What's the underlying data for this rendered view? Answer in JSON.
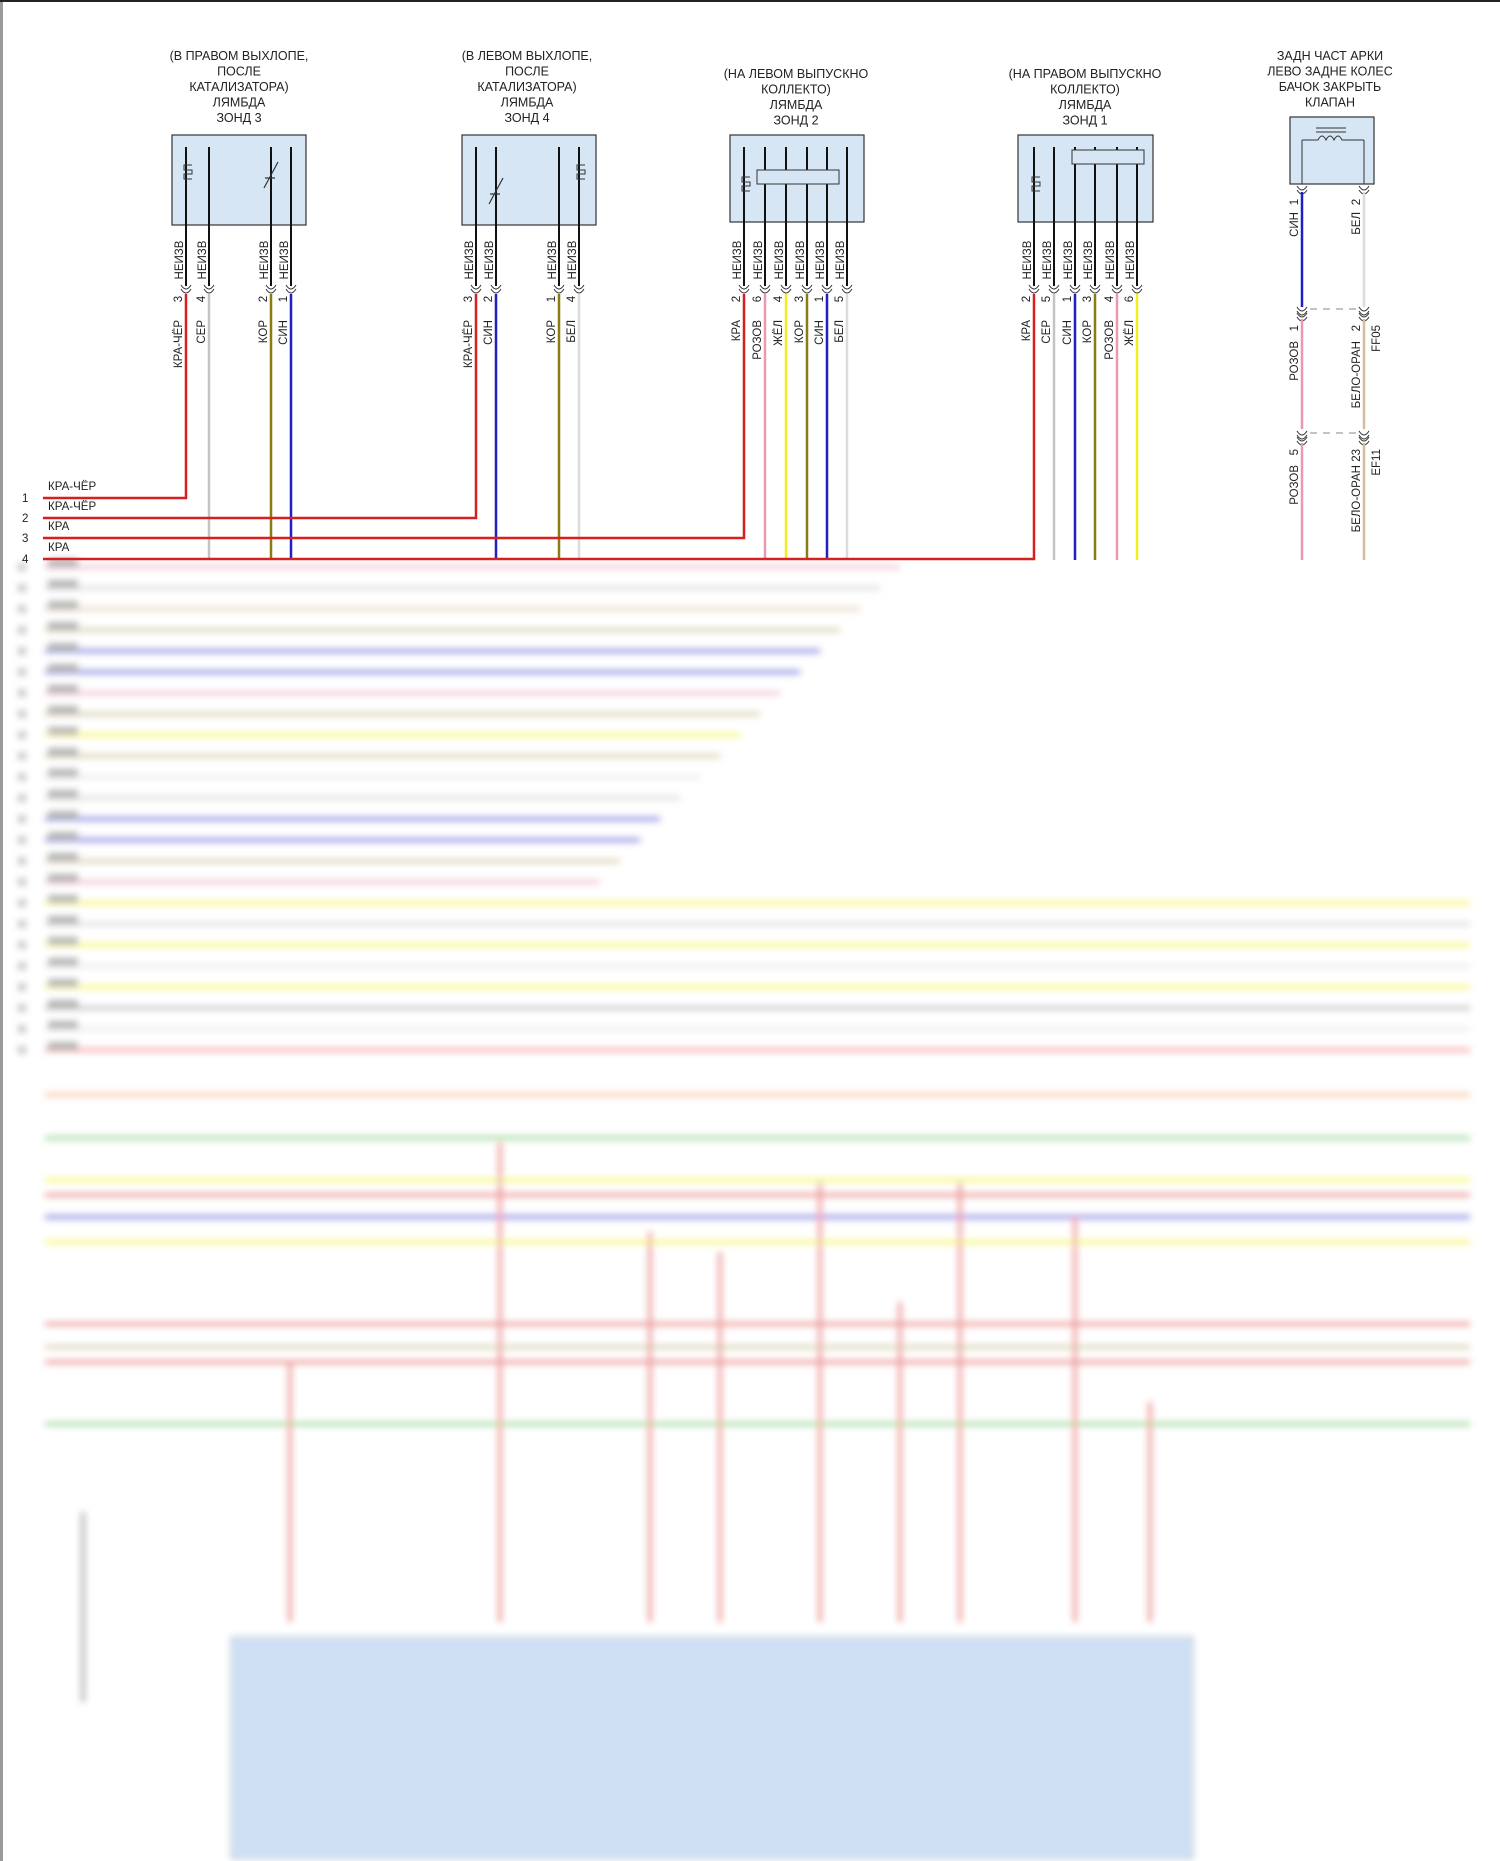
{
  "bus": [
    {
      "num": "1",
      "label": "КРА-ЧЁР"
    },
    {
      "num": "2",
      "label": "КРА-ЧЁР"
    },
    {
      "num": "3",
      "label": "КРА"
    },
    {
      "num": "4",
      "label": "КРА"
    }
  ],
  "unknown_label": "НЕИЗВ",
  "connectors": [
    {
      "id": "zond3",
      "title": [
        "(В ПРАВОМ ВЫХЛОПЕ,",
        "ПОСЛЕ",
        "КАТАЛИЗАТОРА)",
        "ЛЯМБДА",
        "ЗОНД 3"
      ],
      "pins": [
        {
          "num": "3",
          "wire": "КРА-ЧЁР"
        },
        {
          "num": "4",
          "wire": "СЕР"
        },
        {
          "num": "2",
          "wire": "КОР"
        },
        {
          "num": "1",
          "wire": "СИН"
        }
      ]
    },
    {
      "id": "zond4",
      "title": [
        "(В ЛЕВОМ ВЫХЛОПЕ,",
        "ПОСЛЕ",
        "КАТАЛИЗАТОРА)",
        "ЛЯМБДА",
        "ЗОНД 4"
      ],
      "pins": [
        {
          "num": "3",
          "wire": "КРА-ЧЁР"
        },
        {
          "num": "2",
          "wire": "СИН"
        },
        {
          "num": "1",
          "wire": "КОР"
        },
        {
          "num": "4",
          "wire": "БЕЛ"
        }
      ]
    },
    {
      "id": "zond2",
      "title": [
        "(НА ЛЕВОМ ВЫПУСКНО",
        "КОЛЛЕКТО)",
        "ЛЯМБДА",
        "ЗОНД 2"
      ],
      "pins": [
        {
          "num": "2",
          "wire": "КРА"
        },
        {
          "num": "6",
          "wire": "РОЗОВ"
        },
        {
          "num": "4",
          "wire": "ЖЁЛ"
        },
        {
          "num": "3",
          "wire": "КОР"
        },
        {
          "num": "1",
          "wire": "СИН"
        },
        {
          "num": "5",
          "wire": "БЕЛ"
        }
      ]
    },
    {
      "id": "zond1",
      "title": [
        "(НА ПРАВОМ ВЫПУСКНО",
        "КОЛЛЕКТО)",
        "ЛЯМБДА",
        "ЗОНД 1"
      ],
      "pins": [
        {
          "num": "2",
          "wire": "КРА"
        },
        {
          "num": "5",
          "wire": "СЕР"
        },
        {
          "num": "1",
          "wire": "СИН"
        },
        {
          "num": "3",
          "wire": "КОР"
        },
        {
          "num": "4",
          "wire": "РОЗОВ"
        },
        {
          "num": "6",
          "wire": "ЖЁЛ"
        }
      ]
    },
    {
      "id": "valve",
      "title": [
        "ЗАДН ЧАСТ АРКИ",
        "ЛЕВО ЗАДНЕ КОЛЕС",
        "БАЧОК ЗАКРЫТЬ",
        "КЛАПАН"
      ],
      "pins": [
        {
          "num": "1",
          "wire": "СИН"
        },
        {
          "num": "2",
          "wire": "БЕЛ"
        }
      ]
    }
  ],
  "inline_connectors": [
    {
      "id": "FF05",
      "pins": [
        {
          "num": "1",
          "wire": "РОЗОВ"
        },
        {
          "num": "2",
          "wire": "БЕЛО-ОРАН"
        }
      ]
    },
    {
      "id": "EF11",
      "pins": [
        {
          "num": "5",
          "wire": "РОЗОВ"
        },
        {
          "num": "23",
          "wire": "БЕЛО-ОРАН"
        }
      ]
    }
  ],
  "wire_colors": {
    "КРА": "#d61f1f",
    "КРА-ЧЁР": "#d61f1f",
    "СЕР": "#c4c4c4",
    "КОР": "#8c7a12",
    "СИН": "#1f1fc4",
    "БЕЛ": "#dcdcdc",
    "РОЗОВ": "#e89aae",
    "ЖЁЛ": "#f2ee1c",
    "БЕЛО-ОРАН": "#d6bd9a"
  },
  "connector_fill": "#d6e6f5"
}
